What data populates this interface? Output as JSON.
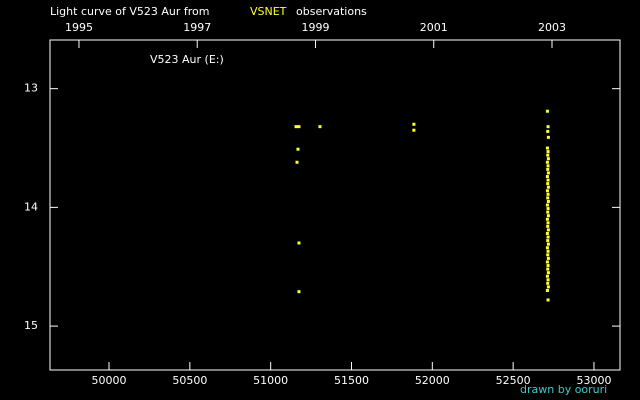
{
  "chart_data": {
    "type": "scatter",
    "title": "Light curve of V523 Aur from",
    "source": "VSNET",
    "title_suffix": "observations",
    "annotation": "V523 Aur (E:)",
    "credit": "drawn by ooruri",
    "xlim": [
      49635,
      53161
    ],
    "xticks": [
      50000,
      50500,
      51000,
      51500,
      52000,
      52500,
      53000
    ],
    "x2lim": [
      1994.51,
      2004.15
    ],
    "x2ticks": [
      1995,
      1997,
      1999,
      2001,
      2003
    ],
    "ylim": [
      12.59,
      15.37
    ],
    "y_inverted": true,
    "yticks": [
      13,
      14,
      15
    ],
    "series": [
      {
        "name": "V523 Aur",
        "color": "#ffff33",
        "x": [
          51157,
          51175,
          51169,
          51163,
          51175,
          51175,
          51305,
          51886,
          51886,
          52712,
          52716,
          52714,
          52718,
          52712,
          52716,
          52714,
          52718,
          52712,
          52716,
          52714,
          52718,
          52712,
          52716,
          52714,
          52718,
          52712,
          52716,
          52714,
          52718,
          52712,
          52716,
          52714,
          52718,
          52712,
          52716,
          52714,
          52718,
          52712,
          52716,
          52714,
          52718,
          52712,
          52716,
          52714,
          52718,
          52712,
          52716,
          52714,
          52718,
          52712,
          52716,
          52714,
          52718,
          52712,
          52716
        ],
        "values": [
          13.32,
          13.32,
          13.51,
          13.62,
          14.3,
          14.71,
          13.32,
          13.3,
          13.35,
          13.19,
          13.32,
          13.36,
          13.41,
          13.5,
          13.53,
          13.56,
          13.59,
          13.62,
          13.65,
          13.68,
          13.71,
          13.74,
          13.77,
          13.8,
          13.83,
          13.86,
          13.89,
          13.92,
          13.95,
          13.98,
          14.01,
          14.04,
          14.07,
          14.1,
          14.13,
          14.16,
          14.19,
          14.22,
          14.25,
          14.28,
          14.31,
          14.34,
          14.37,
          14.4,
          14.43,
          14.46,
          14.49,
          14.52,
          14.55,
          14.58,
          14.61,
          14.64,
          14.67,
          14.7,
          14.78
        ]
      }
    ]
  }
}
